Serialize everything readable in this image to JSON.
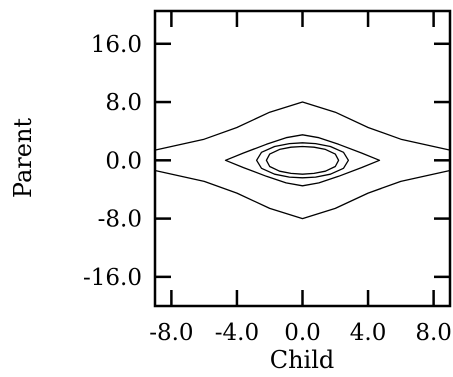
{
  "chart_data": {
    "type": "contour",
    "xlabel": "Child",
    "ylabel": "Parent",
    "xlim": [
      -9,
      9
    ],
    "ylim": [
      -20,
      20.5
    ],
    "grid": false,
    "legend": "none",
    "x_ticks": [
      {
        "value": -8.0,
        "label": "-8.0"
      },
      {
        "value": -4.0,
        "label": "-4.0"
      },
      {
        "value": 0.0,
        "label": "0.0"
      },
      {
        "value": 4.0,
        "label": "4.0"
      },
      {
        "value": 8.0,
        "label": "8.0"
      }
    ],
    "y_ticks": [
      {
        "value": 16.0,
        "label": "16.0"
      },
      {
        "value": 8.0,
        "label": "8.0"
      },
      {
        "value": 0.0,
        "label": "0.0"
      },
      {
        "value": -8.0,
        "label": "-8.0"
      },
      {
        "value": -16.0,
        "label": "-16.0"
      }
    ],
    "contours": [
      {
        "closed": false,
        "upper": [
          [
            -9,
            1.4
          ],
          [
            -6,
            2.9
          ],
          [
            -4,
            4.5
          ],
          [
            -2,
            6.6
          ],
          [
            0,
            8.0
          ],
          [
            2,
            6.6
          ],
          [
            4,
            4.5
          ],
          [
            6,
            2.9
          ],
          [
            9,
            1.4
          ]
        ],
        "lower": [
          [
            -9,
            -1.4
          ],
          [
            -6,
            -2.9
          ],
          [
            -4,
            -4.5
          ],
          [
            -2,
            -6.6
          ],
          [
            0,
            -8.0
          ],
          [
            2,
            -6.6
          ],
          [
            4,
            -4.5
          ],
          [
            6,
            -2.9
          ],
          [
            9,
            -1.4
          ]
        ]
      },
      {
        "closed": true,
        "points": [
          [
            -4.7,
            0
          ],
          [
            -3.6,
            1.0
          ],
          [
            -2.2,
            2.2
          ],
          [
            -1.0,
            3.1
          ],
          [
            0,
            3.5
          ],
          [
            1.0,
            3.1
          ],
          [
            2.2,
            2.2
          ],
          [
            3.6,
            1.0
          ],
          [
            4.7,
            0
          ],
          [
            3.6,
            -1.0
          ],
          [
            2.2,
            -2.2
          ],
          [
            1.0,
            -3.1
          ],
          [
            0,
            -3.5
          ],
          [
            -1.0,
            -3.1
          ],
          [
            -2.2,
            -2.2
          ],
          [
            -3.6,
            -1.0
          ]
        ]
      },
      {
        "closed": true,
        "points": [
          [
            -2.8,
            0
          ],
          [
            -2.5,
            1.1
          ],
          [
            -1.7,
            1.9
          ],
          [
            -0.8,
            2.3
          ],
          [
            0,
            2.4
          ],
          [
            0.8,
            2.3
          ],
          [
            1.7,
            1.9
          ],
          [
            2.5,
            1.1
          ],
          [
            2.8,
            0
          ],
          [
            2.5,
            -1.1
          ],
          [
            1.7,
            -1.9
          ],
          [
            0.8,
            -2.3
          ],
          [
            0,
            -2.4
          ],
          [
            -0.8,
            -2.3
          ],
          [
            -1.7,
            -1.9
          ],
          [
            -2.5,
            -1.1
          ]
        ]
      },
      {
        "closed": true,
        "points": [
          [
            -2.2,
            0
          ],
          [
            -2.0,
            0.85
          ],
          [
            -1.4,
            1.5
          ],
          [
            -0.7,
            1.8
          ],
          [
            0,
            1.9
          ],
          [
            0.7,
            1.8
          ],
          [
            1.4,
            1.5
          ],
          [
            2.0,
            0.85
          ],
          [
            2.2,
            0
          ],
          [
            2.0,
            -0.85
          ],
          [
            1.4,
            -1.5
          ],
          [
            0.7,
            -1.8
          ],
          [
            0,
            -1.9
          ],
          [
            -0.7,
            -1.8
          ],
          [
            -1.4,
            -1.5
          ],
          [
            -2.0,
            -0.85
          ]
        ]
      }
    ]
  }
}
